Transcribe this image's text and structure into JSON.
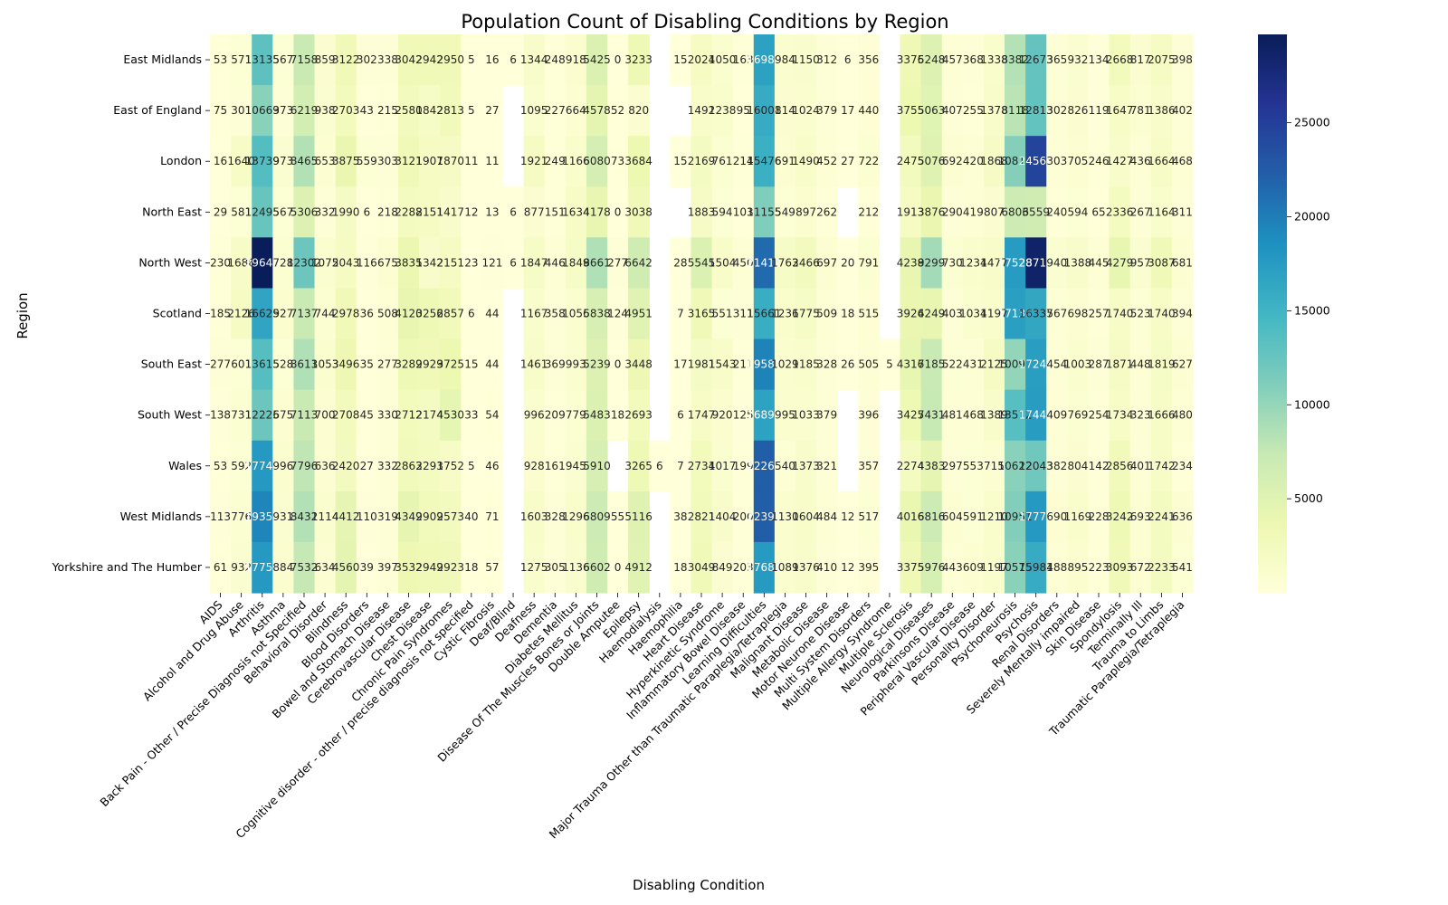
{
  "chart_data": {
    "type": "heatmap",
    "title": "Population Count of Disabling Conditions by Region",
    "xlabel": "Disabling Condition",
    "ylabel": "Region",
    "colormap": "YlGnBu",
    "colorbar": {
      "range": [
        0,
        29700
      ],
      "ticks": [
        5000,
        10000,
        15000,
        20000,
        25000
      ],
      "tick_labels": [
        "5000",
        "10000",
        "15000",
        "20000",
        "25000"
      ],
      "placement": "right"
    },
    "rows": [
      "East Midlands",
      "East of England",
      "London",
      "North East",
      "North West",
      "Scotland",
      "South East",
      "South West",
      "Wales",
      "West Midlands",
      "Yorkshire and The Humber"
    ],
    "columns": [
      "AIDS",
      "Alcohol and Drug Abuse",
      "Arthritis",
      "Asthma",
      "Back Pain - Other / Precise Diagnosis not Specified",
      "Behavioral Disorder",
      "Blindness",
      "Blood Disorders",
      "Bowel and Stomach Disease",
      "Cerebrovascular Disease",
      "Chest Disease",
      "Chronic Pain Syndromes",
      "Cognitive disorder - other / precise diagnosis not specified",
      "Cystic Fibrosis",
      "Deaf/Blind",
      "Deafness",
      "Dementia",
      "Diabetes Mellitus",
      "Disease Of The Muscles  Bones or Joints",
      "Double Amputee",
      "Epilepsy",
      "Haemodialysis",
      "Haemophilia",
      "Heart Disease",
      "Hyperkinetic Syndrome",
      "Inflammatory Bowel Disease",
      "Learning Difficulties",
      "Major Trauma Other than Traumatic Paraplegia/Tetraplegia",
      "Malignant Disease",
      "Metabolic Disease",
      "Motor Neurone Disease",
      "Multi System Disorders",
      "Multiple Allergy Syndrome",
      "Multiple Sclerosis",
      "Neurological Diseases",
      "Parkinsons Disease",
      "Peripheral Vascular Disease",
      "Personality Disorder",
      "Psychoneurosis",
      "Psychosis",
      "Renal Disorders",
      "Severely Mentally impaired",
      "Skin Disease",
      "Spondylosis",
      "Terminally Ill",
      "Trauma to Limbs",
      "Traumatic Paraplegia/Tetraplegia"
    ],
    "values": [
      [
        53,
        571,
        13135,
        567,
        7158,
        859,
        3122,
        302,
        338,
        3042,
        2942,
        2950,
        5,
        16,
        6,
        1344,
        248,
        918,
        5425,
        0,
        3233,
        null,
        15,
        2024,
        1050,
        163,
        16985,
        984,
        1150,
        312,
        6,
        356,
        null,
        3376,
        5248,
        457,
        368,
        1338,
        8382,
        12673,
        365,
        932,
        134,
        2668,
        817,
        2075,
        398
      ],
      [
        75,
        301,
        10669,
        373,
        6219,
        938,
        2703,
        43,
        215,
        2580,
        1842,
        2813,
        5,
        27,
        null,
        1095,
        227,
        664,
        4578,
        52,
        820,
        null,
        null,
        1492,
        1238,
        95,
        16001,
        814,
        1024,
        379,
        17,
        440,
        null,
        3755,
        5063,
        407,
        255,
        1378,
        8118,
        12813,
        302,
        826,
        119,
        1647,
        781,
        1386,
        402
      ],
      [
        16,
        1640,
        13739,
        973,
        8465,
        653,
        3875,
        559,
        303,
        3121,
        1907,
        1870,
        11,
        11,
        null,
        1921,
        249,
        1166,
        6080,
        73,
        3684,
        null,
        15,
        2169,
        761,
        214,
        15476,
        691,
        1490,
        452,
        27,
        722,
        null,
        2475,
        5076,
        692,
        420,
        1868,
        10814,
        24560,
        303,
        705,
        246,
        1427,
        436,
        1664,
        468
      ],
      [
        29,
        581,
        12495,
        567,
        5306,
        332,
        1990,
        6,
        218,
        2288,
        2151,
        1417,
        12,
        13,
        6,
        877,
        151,
        1634,
        4178,
        0,
        3038,
        null,
        null,
        1883,
        594,
        103,
        11155,
        549,
        897,
        262,
        null,
        212,
        null,
        1913,
        3876,
        290,
        419,
        807,
        6803,
        6559,
        240,
        594,
        65,
        2336,
        267,
        1164,
        311
      ],
      [
        230,
        1686,
        29644,
        728,
        12302,
        1075,
        2043,
        116,
        675,
        3835,
        1342,
        2151,
        23,
        121,
        6,
        1847,
        446,
        1849,
        8661,
        277,
        6642,
        null,
        28,
        5545,
        1504,
        450,
        21412,
        1763,
        2466,
        697,
        20,
        791,
        null,
        4238,
        9299,
        730,
        1234,
        1477,
        17528,
        28717,
        940,
        1388,
        445,
        4279,
        957,
        3087,
        681
      ],
      [
        185,
        2126,
        16625,
        927,
        7137,
        744,
        2978,
        36,
        508,
        4120,
        3256,
        2857,
        6,
        44,
        null,
        1167,
        358,
        1056,
        5838,
        124,
        4951,
        null,
        7,
        3165,
        551,
        311,
        15661,
        1236,
        1775,
        509,
        18,
        515,
        null,
        3926,
        4249,
        403,
        1034,
        1197,
        17136,
        16337,
        567,
        698,
        257,
        1740,
        523,
        1740,
        394
      ],
      [
        277,
        601,
        13615,
        528,
        8613,
        1053,
        3496,
        35,
        277,
        3289,
        2929,
        3725,
        15,
        44,
        null,
        1461,
        369,
        993,
        5239,
        0,
        3448,
        null,
        17,
        1981,
        1543,
        211,
        19581,
        1029,
        1185,
        328,
        26,
        505,
        5,
        4316,
        7185,
        522,
        431,
        2125,
        10097,
        17241,
        454,
        1003,
        287,
        1871,
        448,
        1819,
        627
      ],
      [
        138,
        731,
        12225,
        675,
        7113,
        700,
        2708,
        45,
        330,
        2712,
        2174,
        4530,
        33,
        54,
        null,
        996,
        209,
        779,
        5483,
        18,
        2693,
        null,
        6,
        1747,
        920,
        125,
        16895,
        995,
        1033,
        379,
        null,
        396,
        null,
        3425,
        7431,
        481,
        468,
        1389,
        13512,
        17447,
        409,
        769,
        254,
        1734,
        323,
        1666,
        480
      ],
      [
        53,
        592,
        17741,
        996,
        7796,
        636,
        2420,
        27,
        332,
        2863,
        2293,
        1752,
        5,
        46,
        null,
        928,
        161,
        945,
        5910,
        null,
        3265,
        6,
        7,
        2734,
        1017,
        199,
        22265,
        540,
        1373,
        321,
        null,
        357,
        null,
        2274,
        4383,
        297,
        553,
        715,
        10622,
        12043,
        382,
        804,
        142,
        2856,
        401,
        1742,
        234
      ],
      [
        113,
        776,
        19353,
        931,
        8432,
        1114,
        4412,
        110,
        319,
        4349,
        2909,
        2573,
        40,
        71,
        null,
        1603,
        328,
        1296,
        6809,
        55,
        5116,
        null,
        38,
        2821,
        1404,
        200,
        22398,
        1130,
        1604,
        484,
        12,
        517,
        null,
        4016,
        6816,
        604,
        591,
        1210,
        10951,
        17770,
        690,
        1169,
        228,
        3242,
        693,
        2241,
        636
      ],
      [
        61,
        932,
        17754,
        884,
        7532,
        634,
        4560,
        39,
        397,
        3532,
        2949,
        2923,
        18,
        57,
        null,
        1275,
        305,
        1136,
        6602,
        0,
        4912,
        null,
        18,
        3049,
        849,
        203,
        17684,
        1089,
        1376,
        410,
        12,
        395,
        null,
        3375,
        5976,
        443,
        609,
        1197,
        10575,
        15981,
        488,
        895,
        223,
        3093,
        672,
        2233,
        541
      ]
    ]
  }
}
